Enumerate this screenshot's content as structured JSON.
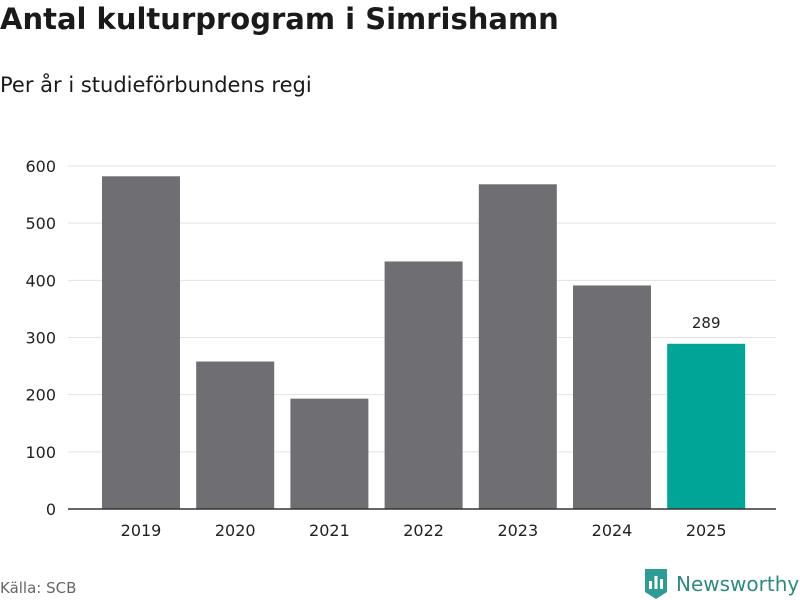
{
  "title": "Antal kulturprogram i Simrishamn",
  "subtitle": "Per år i studieförbundens regi",
  "source": "Källa: SCB",
  "brand": {
    "name": "Newsworthy",
    "icon": "newsworthy-logo-icon",
    "color": "#2d9c95"
  },
  "colors": {
    "bar": "#6e6e73",
    "highlight": "#00a598",
    "grid": "#e3e3e3",
    "axis": "#333333"
  },
  "chart_data": {
    "type": "bar",
    "categories": [
      "2019",
      "2020",
      "2021",
      "2022",
      "2023",
      "2024",
      "2025"
    ],
    "values": [
      582,
      258,
      193,
      433,
      568,
      391,
      289
    ],
    "highlight_index": 6,
    "data_labels": [
      {
        "index": 6,
        "text": "289"
      }
    ],
    "ylim": [
      0,
      600
    ],
    "yticks": [
      0,
      100,
      200,
      300,
      400,
      500,
      600
    ],
    "grid": true
  }
}
